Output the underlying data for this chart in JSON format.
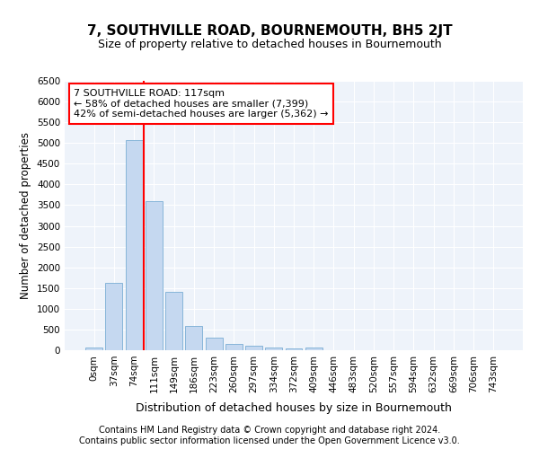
{
  "title": "7, SOUTHVILLE ROAD, BOURNEMOUTH, BH5 2JT",
  "subtitle": "Size of property relative to detached houses in Bournemouth",
  "xlabel": "Distribution of detached houses by size in Bournemouth",
  "ylabel": "Number of detached properties",
  "bar_values": [
    75,
    1625,
    5075,
    3600,
    1400,
    575,
    300,
    150,
    100,
    75,
    50,
    75,
    0,
    0,
    0,
    0,
    0,
    0,
    0,
    0,
    0
  ],
  "bar_labels": [
    "0sqm",
    "37sqm",
    "74sqm",
    "111sqm",
    "149sqm",
    "186sqm",
    "223sqm",
    "260sqm",
    "297sqm",
    "334sqm",
    "372sqm",
    "409sqm",
    "446sqm",
    "483sqm",
    "520sqm",
    "557sqm",
    "594sqm",
    "632sqm",
    "669sqm",
    "706sqm",
    "743sqm"
  ],
  "bar_color": "#c5d8f0",
  "bar_edge_color": "#7aadd4",
  "vline_x": 2.5,
  "vline_color": "red",
  "annotation_text": "7 SOUTHVILLE ROAD: 117sqm\n← 58% of detached houses are smaller (7,399)\n42% of semi-detached houses are larger (5,362) →",
  "annotation_box_color": "white",
  "annotation_box_edge_color": "red",
  "ylim": [
    0,
    6500
  ],
  "yticks": [
    0,
    500,
    1000,
    1500,
    2000,
    2500,
    3000,
    3500,
    4000,
    4500,
    5000,
    5500,
    6000,
    6500
  ],
  "plot_bg_color": "#eef3fa",
  "footer_line1": "Contains HM Land Registry data © Crown copyright and database right 2024.",
  "footer_line2": "Contains public sector information licensed under the Open Government Licence v3.0.",
  "title_fontsize": 11,
  "subtitle_fontsize": 9,
  "xlabel_fontsize": 9,
  "ylabel_fontsize": 8.5,
  "tick_fontsize": 7.5,
  "annotation_fontsize": 8,
  "footer_fontsize": 7
}
